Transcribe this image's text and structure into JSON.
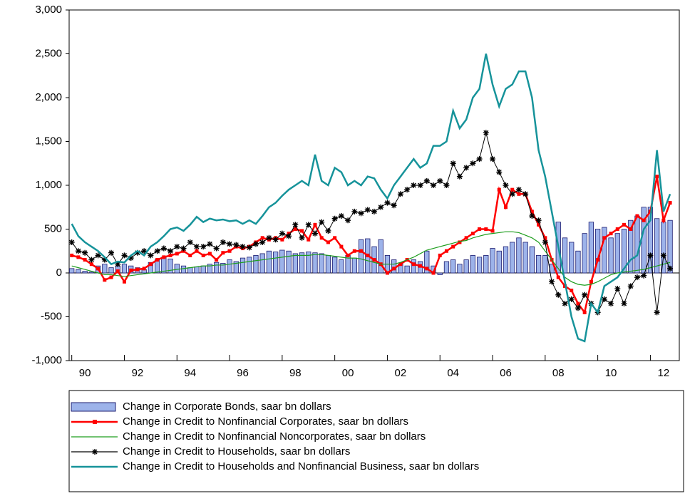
{
  "chart_data": {
    "type": "combo",
    "x": [
      1990,
      1990.25,
      1990.5,
      1990.75,
      1991,
      1991.25,
      1991.5,
      1991.75,
      1992,
      1992.25,
      1992.5,
      1992.75,
      1993,
      1993.25,
      1993.5,
      1993.75,
      1994,
      1994.25,
      1994.5,
      1994.75,
      1995,
      1995.25,
      1995.5,
      1995.75,
      1996,
      1996.25,
      1996.5,
      1996.75,
      1997,
      1997.25,
      1997.5,
      1997.75,
      1998,
      1998.25,
      1998.5,
      1998.75,
      1999,
      1999.25,
      1999.5,
      1999.75,
      2000,
      2000.25,
      2000.5,
      2000.75,
      2001,
      2001.25,
      2001.5,
      2001.75,
      2002,
      2002.25,
      2002.5,
      2002.75,
      2003,
      2003.25,
      2003.5,
      2003.75,
      2004,
      2004.25,
      2004.5,
      2004.75,
      2005,
      2005.25,
      2005.5,
      2005.75,
      2006,
      2006.25,
      2006.5,
      2006.75,
      2007,
      2007.25,
      2007.5,
      2007.75,
      2008,
      2008.25,
      2008.5,
      2008.75,
      2009,
      2009.25,
      2009.5,
      2009.75,
      2010,
      2010.25,
      2010.5,
      2010.75,
      2011,
      2011.25,
      2011.5,
      2011.75,
      2012,
      2012.25,
      2012.5,
      2012.75
    ],
    "xlim": [
      1989.9,
      2013.1
    ],
    "xticks": [
      {
        "value": 1990,
        "label": "90"
      },
      {
        "value": 1992,
        "label": "92"
      },
      {
        "value": 1994,
        "label": "94"
      },
      {
        "value": 1996,
        "label": "96"
      },
      {
        "value": 1998,
        "label": "98"
      },
      {
        "value": 2000,
        "label": "00"
      },
      {
        "value": 2002,
        "label": "02"
      },
      {
        "value": 2004,
        "label": "04"
      },
      {
        "value": 2006,
        "label": "06"
      },
      {
        "value": 2008,
        "label": "08"
      },
      {
        "value": 2010,
        "label": "10"
      },
      {
        "value": 2012,
        "label": "12"
      }
    ],
    "ylim": [
      -1000,
      3000
    ],
    "yticks": [
      {
        "value": -1000,
        "label": "-1,000"
      },
      -500,
      0,
      500,
      {
        "value": 1000,
        "label": "1,000"
      },
      {
        "value": 1500,
        "label": "1,500"
      },
      {
        "value": 2000,
        "label": "2,000"
      },
      {
        "value": 2500,
        "label": "2,500"
      },
      {
        "value": 3000,
        "label": "3,000"
      }
    ],
    "series": [
      {
        "name": "Change in Corporate Bonds, saar bn dollars",
        "type": "bar",
        "color": "#9db3ea",
        "values": [
          50,
          40,
          20,
          10,
          80,
          100,
          60,
          80,
          100,
          80,
          60,
          40,
          120,
          150,
          180,
          160,
          100,
          80,
          60,
          70,
          80,
          100,
          120,
          110,
          150,
          130,
          170,
          180,
          200,
          220,
          250,
          240,
          260,
          250,
          220,
          230,
          240,
          230,
          220,
          200,
          180,
          150,
          200,
          170,
          380,
          390,
          300,
          380,
          200,
          150,
          100,
          80,
          150,
          130,
          250,
          80,
          -20,
          130,
          150,
          100,
          150,
          200,
          180,
          200,
          280,
          250,
          300,
          350,
          400,
          350,
          300,
          200,
          200,
          100,
          580,
          400,
          350,
          250,
          450,
          580,
          500,
          520,
          400,
          450,
          500,
          600,
          650,
          750,
          750,
          620,
          580,
          600
        ]
      },
      {
        "name": "Change in Credit to Nonfinancial Corporates, saar bn dollars",
        "type": "line",
        "marker": "square",
        "color": "#ff0000",
        "values": [
          200,
          180,
          150,
          100,
          50,
          -80,
          -50,
          20,
          -100,
          30,
          40,
          50,
          100,
          150,
          180,
          200,
          220,
          250,
          200,
          250,
          200,
          220,
          150,
          230,
          250,
          300,
          280,
          300,
          350,
          400,
          380,
          400,
          380,
          450,
          500,
          480,
          380,
          550,
          400,
          350,
          400,
          300,
          200,
          250,
          250,
          200,
          150,
          100,
          0,
          50,
          100,
          150,
          100,
          80,
          50,
          0,
          200,
          250,
          300,
          350,
          400,
          450,
          500,
          500,
          480,
          950,
          750,
          950,
          900,
          900,
          700,
          550,
          400,
          150,
          -50,
          -150,
          -200,
          -350,
          -450,
          -100,
          150,
          400,
          450,
          500,
          550,
          500,
          650,
          600,
          700,
          1100,
          600,
          800
        ]
      },
      {
        "name": "Change in Credit to Nonfinancial Noncorporates, saar bn dollars",
        "type": "line",
        "color": "#1e9e1e",
        "values": [
          80,
          60,
          40,
          20,
          0,
          -20,
          -20,
          -30,
          -40,
          -30,
          -20,
          -10,
          0,
          10,
          20,
          30,
          40,
          50,
          60,
          70,
          80,
          80,
          90,
          90,
          100,
          110,
          120,
          130,
          140,
          150,
          160,
          170,
          180,
          190,
          200,
          200,
          200,
          210,
          210,
          200,
          190,
          180,
          170,
          170,
          160,
          140,
          120,
          100,
          100,
          100,
          120,
          150,
          180,
          220,
          260,
          280,
          300,
          320,
          340,
          360,
          370,
          400,
          420,
          440,
          450,
          460,
          470,
          470,
          460,
          430,
          400,
          350,
          250,
          150,
          50,
          -50,
          -100,
          -130,
          -140,
          -130,
          -100,
          -60,
          -20,
          0,
          10,
          20,
          30,
          40,
          60,
          80,
          100,
          120
        ]
      },
      {
        "name": "Change in Credit to Households, saar bn dollars",
        "type": "line",
        "marker": "star",
        "color": "#000000",
        "values": [
          350,
          250,
          230,
          150,
          200,
          150,
          230,
          100,
          200,
          170,
          230,
          250,
          200,
          250,
          280,
          250,
          300,
          280,
          350,
          300,
          300,
          330,
          280,
          350,
          330,
          320,
          300,
          290,
          330,
          350,
          400,
          380,
          450,
          420,
          550,
          400,
          550,
          450,
          580,
          480,
          620,
          650,
          600,
          700,
          680,
          720,
          700,
          750,
          800,
          770,
          900,
          950,
          1000,
          1000,
          1050,
          1000,
          1050,
          1000,
          1250,
          1100,
          1200,
          1250,
          1300,
          1600,
          1300,
          1150,
          1000,
          900,
          950,
          900,
          650,
          600,
          350,
          -100,
          -250,
          -350,
          -300,
          -400,
          -250,
          -350,
          -450,
          -300,
          -350,
          -180,
          -350,
          -150,
          -50,
          -30,
          200,
          -450,
          200,
          50
        ]
      },
      {
        "name": "Change in Credit to Households and Nonfinancial Business, saar bn dollars",
        "type": "line",
        "color": "#16939a",
        "values": [
          560,
          420,
          350,
          300,
          250,
          180,
          100,
          130,
          120,
          200,
          250,
          200,
          300,
          350,
          420,
          500,
          520,
          480,
          550,
          640,
          580,
          620,
          600,
          610,
          590,
          600,
          560,
          600,
          560,
          650,
          750,
          800,
          880,
          950,
          1000,
          1050,
          1000,
          1350,
          1050,
          1000,
          1200,
          1150,
          1000,
          1050,
          1000,
          1100,
          1080,
          950,
          850,
          1000,
          1100,
          1200,
          1300,
          1200,
          1250,
          1450,
          1450,
          1500,
          1850,
          1650,
          1750,
          2000,
          2100,
          2500,
          2150,
          1900,
          2100,
          2150,
          2300,
          2300,
          2000,
          1400,
          1100,
          700,
          300,
          -100,
          -500,
          -750,
          -780,
          -350,
          -450,
          -150,
          -100,
          -50,
          50,
          150,
          200,
          500,
          600,
          1400,
          700,
          900
        ]
      }
    ]
  }
}
